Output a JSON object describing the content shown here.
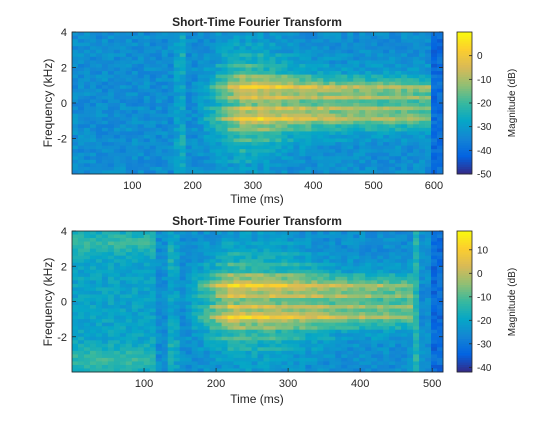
{
  "chart_data": [
    {
      "type": "heatmap",
      "title": "Short-Time Fourier Transform",
      "xlabel": "Time (ms)",
      "ylabel": "Frequency (kHz)",
      "xlim": [
        0,
        615
      ],
      "ylim": [
        -4,
        4
      ],
      "xticks": [
        100,
        200,
        300,
        400,
        500,
        600
      ],
      "yticks": [
        -2,
        0,
        2,
        4
      ],
      "colorbar": {
        "label": "Magnitude (dB)",
        "range": [
          -50,
          10
        ],
        "ticks": [
          -50,
          -40,
          -30,
          -20,
          -10,
          0
        ]
      },
      "features": {
        "onset_ms": 205,
        "offset_ms": 600,
        "transient_ms": 180,
        "envelope_peak_ms": 280,
        "center_band_khz": 0.9,
        "harmonic_spacing_khz": 0.3
      }
    },
    {
      "type": "heatmap",
      "title": "Short-Time Fourier Transform",
      "xlabel": "Time (ms)",
      "ylabel": "Frequency (kHz)",
      "xlim": [
        0,
        515
      ],
      "ylim": [
        -4,
        4
      ],
      "xticks": [
        100,
        200,
        300,
        400,
        500
      ],
      "yticks": [
        -2,
        0,
        2,
        4
      ],
      "colorbar": {
        "label": "Magnitude (dB)",
        "range": [
          -42,
          18
        ],
        "ticks": [
          -40,
          -30,
          -20,
          -10,
          0,
          10
        ]
      },
      "features": {
        "onset_ms": 155,
        "offset_ms": 470,
        "transient_ms": 140,
        "envelope_peak_ms": 250,
        "center_band_khz": 0.9,
        "harmonic_spacing_khz": 0.3
      }
    }
  ]
}
